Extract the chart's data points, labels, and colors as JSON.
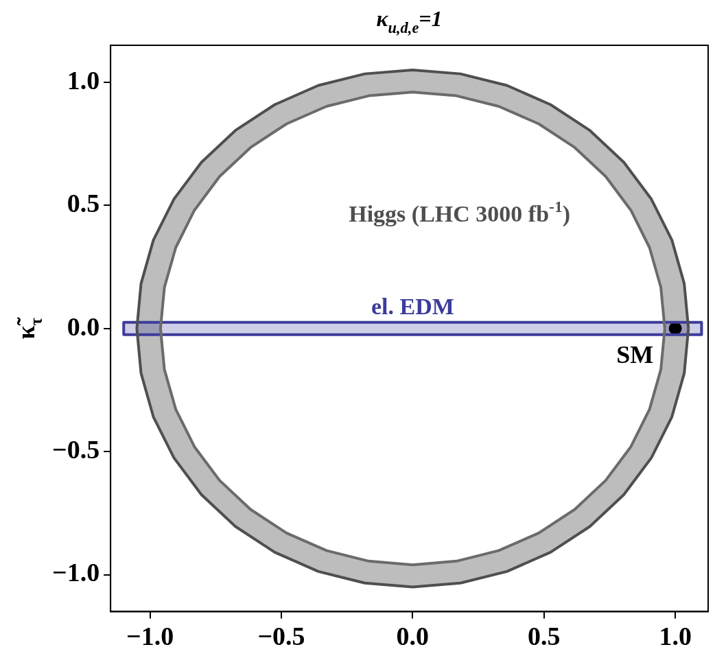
{
  "chart_data": {
    "type": "area",
    "title": "κ$_{u,d,e}$=1",
    "ylabel": "κ̃$_{τ}$",
    "xlim": [
      -1.15,
      1.125
    ],
    "ylim": [
      -1.15,
      1.15
    ],
    "xticks": [
      {
        "value": -1,
        "label": "−1.0"
      },
      {
        "value": -0.5,
        "label": "−0.5"
      },
      {
        "value": 0,
        "label": "0.0"
      },
      {
        "value": 0.5,
        "label": "0.5"
      },
      {
        "value": 1,
        "label": "1.0"
      }
    ],
    "yticks": [
      {
        "value": -1,
        "label": "−1.0"
      },
      {
        "value": -0.5,
        "label": "−0.5"
      },
      {
        "value": 0,
        "label": "0.0"
      },
      {
        "value": 0.5,
        "label": "0.5"
      },
      {
        "value": 1,
        "label": "1.0"
      }
    ],
    "grid": false,
    "legend": false,
    "series": [
      {
        "name": "Higgs (LHC 3000 fb$^{-1}$)",
        "color": "#bdbdbd",
        "x": [
          1.05,
          1.034,
          0.987,
          0.909,
          0.804,
          0.675,
          0.525,
          0.359,
          0.182,
          0,
          -0.182,
          -0.359,
          -0.525,
          -0.675,
          -0.804,
          -0.909,
          -0.987,
          -1.034,
          -1.05,
          -1.034,
          -0.987,
          -0.909,
          -0.804,
          -0.675,
          -0.525,
          -0.359,
          -0.182,
          0,
          0.182,
          0.359,
          0.525,
          0.675,
          0.804,
          0.909,
          0.987,
          1.034,
          1.05
        ],
        "values": [
          0,
          0.182,
          0.359,
          0.525,
          0.675,
          0.804,
          0.909,
          0.987,
          1.034,
          1.05,
          1.034,
          0.987,
          0.909,
          0.804,
          0.675,
          0.525,
          0.359,
          0.182,
          0,
          -0.182,
          -0.359,
          -0.525,
          -0.675,
          -0.804,
          -0.909,
          -0.987,
          -1.034,
          -1.05,
          -1.034,
          -0.987,
          -0.909,
          -0.804,
          -0.675,
          -0.525,
          -0.359,
          -0.182,
          0
        ]
      },
      {
        "color": "#ffffff",
        "x": [
          0.96,
          0.945,
          0.902,
          0.831,
          0.735,
          0.617,
          0.48,
          0.328,
          0.167,
          0,
          -0.167,
          -0.328,
          -0.48,
          -0.617,
          -0.735,
          -0.831,
          -0.902,
          -0.945,
          -0.96,
          -0.945,
          -0.902,
          -0.831,
          -0.735,
          -0.617,
          -0.48,
          -0.328,
          -0.167,
          0,
          0.167,
          0.328,
          0.48,
          0.617,
          0.735,
          0.831,
          0.902,
          0.945,
          0.96
        ],
        "values": [
          0,
          0.167,
          0.328,
          0.48,
          0.617,
          0.735,
          0.831,
          0.902,
          0.945,
          0.96,
          0.945,
          0.902,
          0.831,
          0.735,
          0.617,
          0.48,
          0.328,
          0.167,
          0,
          -0.167,
          -0.328,
          -0.48,
          -0.617,
          -0.735,
          -0.831,
          -0.902,
          -0.945,
          -0.96,
          -0.945,
          -0.902,
          -0.831,
          -0.735,
          -0.617,
          -0.48,
          -0.328,
          -0.167,
          0
        ]
      },
      {
        "name": "el. EDM",
        "color": "#3c3c9c",
        "x": [
          -1.1,
          1.1,
          1.1,
          -1.1,
          -1.1
        ],
        "values": [
          -0.025,
          -0.025,
          0.025,
          0.025,
          -0.025
        ]
      },
      {
        "type": "scatter",
        "name": "SM",
        "color": "#000000",
        "marker": "circle",
        "x": [
          1
        ],
        "values": [
          0
        ]
      }
    ]
  }
}
